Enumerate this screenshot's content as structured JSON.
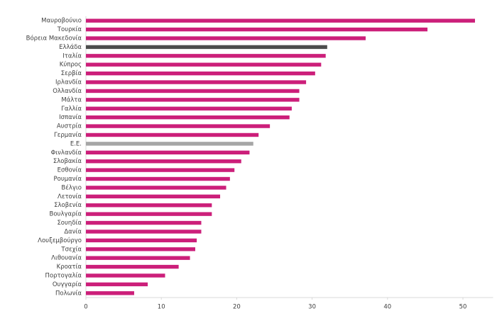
{
  "chart_data": {
    "type": "bar",
    "orientation": "horizontal",
    "categories": [
      "Μαυροβούνιο",
      "Τουρκία",
      "Βόρεια Μακεδονία",
      "Ελλάδα",
      "Ιταλία",
      "Κύπρος",
      "Σερβία",
      "Ιρλανδία",
      "Ολλανδία",
      "Μάλτα",
      "Γαλλία",
      "Ισπανία",
      "Αυστρία",
      "Γερμανία",
      "Ε.Ε.",
      "Φινλανδία",
      "Σλοβακία",
      "Εσθονία",
      "Ρουμανία",
      "Βέλγιο",
      "Λετονία",
      "Σλοβενία",
      "Βουλγαρία",
      "Σουηδία",
      "Δανία",
      "Λουξεμβούργο",
      "Τσεχία",
      "Λιθουανία",
      "Κροατία",
      "Πορτογαλία",
      "Ουγγαρία",
      "Πολωνία"
    ],
    "values": [
      51.6,
      45.3,
      37.1,
      32.0,
      31.8,
      31.2,
      30.4,
      29.2,
      28.3,
      28.3,
      27.3,
      27.0,
      24.4,
      22.9,
      22.2,
      21.7,
      20.6,
      19.7,
      19.1,
      18.6,
      17.8,
      16.7,
      16.7,
      15.3,
      15.3,
      14.7,
      14.5,
      13.8,
      12.3,
      10.5,
      8.2,
      6.4
    ],
    "colors": [
      "#cc1f7a",
      "#cc1f7a",
      "#cc1f7a",
      "#4d4d4d",
      "#cc1f7a",
      "#cc1f7a",
      "#cc1f7a",
      "#cc1f7a",
      "#cc1f7a",
      "#cc1f7a",
      "#cc1f7a",
      "#cc1f7a",
      "#cc1f7a",
      "#cc1f7a",
      "#a6a6a6",
      "#cc1f7a",
      "#cc1f7a",
      "#cc1f7a",
      "#cc1f7a",
      "#cc1f7a",
      "#cc1f7a",
      "#cc1f7a",
      "#cc1f7a",
      "#cc1f7a",
      "#cc1f7a",
      "#cc1f7a",
      "#cc1f7a",
      "#cc1f7a",
      "#cc1f7a",
      "#cc1f7a",
      "#cc1f7a",
      "#cc1f7a"
    ],
    "xlim": [
      0,
      54
    ],
    "xticks": [
      0,
      10,
      20,
      30,
      40,
      50
    ],
    "grid": false
  }
}
